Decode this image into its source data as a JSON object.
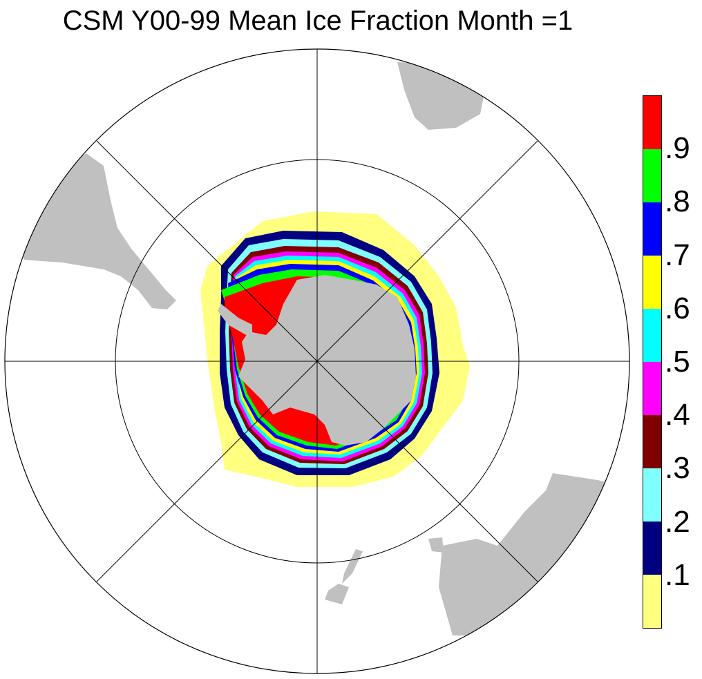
{
  "title": "CSM Y00-99 Mean Ice Fraction Month =1",
  "legend": {
    "colors": [
      "#ffff80",
      "#000080",
      "#80ffff",
      "#800000",
      "#ff00ff",
      "#00ffff",
      "#ffff00",
      "#0000ff",
      "#00ff00",
      "#ff0000"
    ],
    "labels": [
      ".1",
      ".2",
      ".3",
      ".4",
      ".5",
      ".6",
      ".7",
      ".8",
      ".9"
    ]
  },
  "map": {
    "projection": "south polar stereographic",
    "land_color": "#c0c0c0",
    "ocean_color": "#ffffff",
    "variable": "mean sea ice fraction"
  }
}
